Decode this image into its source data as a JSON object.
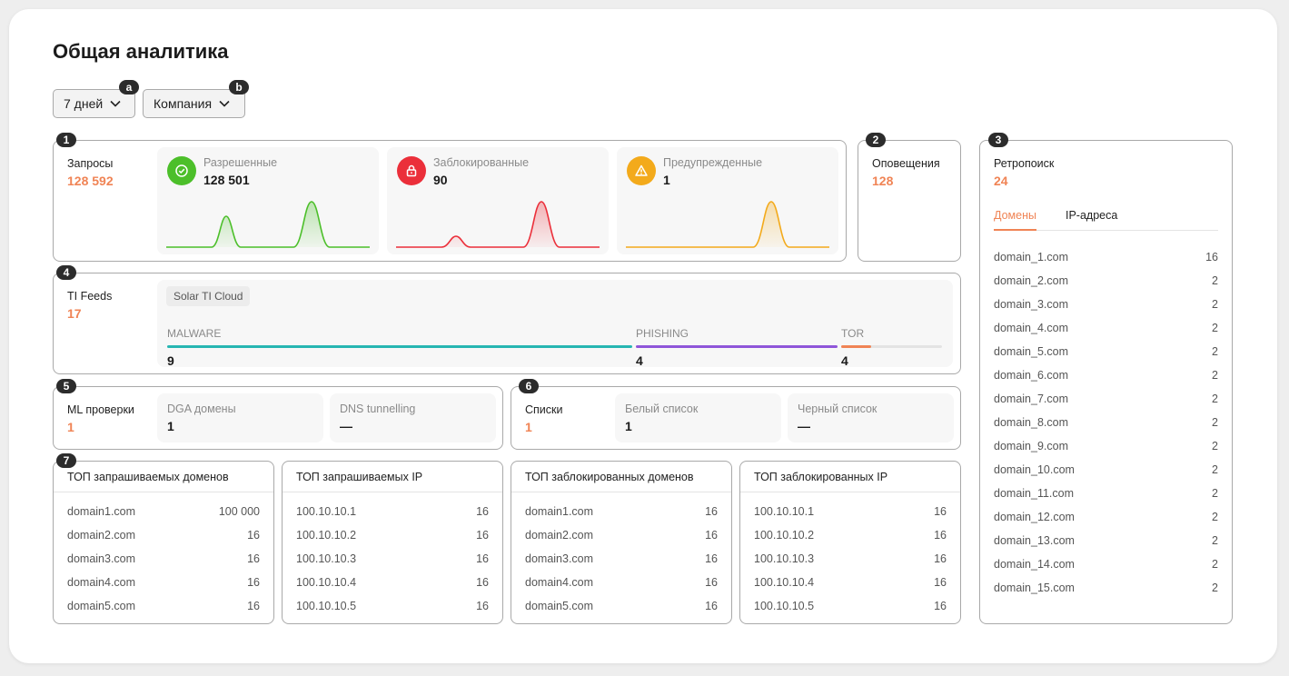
{
  "header": {
    "title": "Общая аналитика"
  },
  "filters": {
    "period_label": "7 дней",
    "company_label": "Компания",
    "marker_a": "a",
    "marker_b": "b"
  },
  "markers": {
    "m1": "1",
    "m2": "2",
    "m3": "3",
    "m4": "4",
    "m5": "5",
    "m6": "6",
    "m7": "7"
  },
  "requests": {
    "label": "Запросы",
    "value": "128 592",
    "cards": [
      {
        "label": "Разрешенные",
        "value": "128 501",
        "color": "#4cbf2a",
        "icon": "check-icon"
      },
      {
        "label": "Заблокированные",
        "value": "90",
        "color": "#eb2f3a",
        "icon": "lock-icon"
      },
      {
        "label": "Предупрежденные",
        "value": "1",
        "color": "#f3aa1b",
        "icon": "warning-icon"
      }
    ]
  },
  "alerts": {
    "label": "Оповещения",
    "value": "128"
  },
  "retro": {
    "label": "Ретропоиск",
    "value": "24",
    "tabs": [
      "Домены",
      "IP-адреса"
    ],
    "rows": [
      {
        "name": "domain_1.com",
        "count": "16"
      },
      {
        "name": "domain_2.com",
        "count": "2"
      },
      {
        "name": "domain_3.com",
        "count": "2"
      },
      {
        "name": "domain_4.com",
        "count": "2"
      },
      {
        "name": "domain_5.com",
        "count": "2"
      },
      {
        "name": "domain_6.com",
        "count": "2"
      },
      {
        "name": "domain_7.com",
        "count": "2"
      },
      {
        "name": "domain_8.com",
        "count": "2"
      },
      {
        "name": "domain_9.com",
        "count": "2"
      },
      {
        "name": "domain_10.com",
        "count": "2"
      },
      {
        "name": "domain_11.com",
        "count": "2"
      },
      {
        "name": "domain_12.com",
        "count": "2"
      },
      {
        "name": "domain_13.com",
        "count": "2"
      },
      {
        "name": "domain_14.com",
        "count": "2"
      },
      {
        "name": "domain_15.com",
        "count": "2"
      }
    ]
  },
  "feeds": {
    "label": "TI Feeds",
    "value": "17",
    "source_tag": "Solar TI Cloud",
    "categories": [
      {
        "name": "MALWARE",
        "value": "9",
        "color": "#27b6b2"
      },
      {
        "name": "PHISHING",
        "value": "4",
        "color": "#8f56d9"
      },
      {
        "name": "TOR",
        "value": "4",
        "color": "#f08455",
        "fill_fraction": 0.3
      }
    ]
  },
  "ml": {
    "label": "ML проверки",
    "value": "1",
    "cards": [
      {
        "label": "DGA домены",
        "value": "1"
      },
      {
        "label": "DNS tunnelling",
        "value": "—"
      }
    ]
  },
  "lists": {
    "label": "Списки",
    "value": "1",
    "cards": [
      {
        "label": "Белый список",
        "value": "1"
      },
      {
        "label": "Черный список",
        "value": "—"
      }
    ]
  },
  "tops": [
    {
      "title": "ТОП запрашиваемых доменов",
      "rows": [
        [
          "domain1.com",
          "100 000"
        ],
        [
          "domain2.com",
          "16"
        ],
        [
          "domain3.com",
          "16"
        ],
        [
          "domain4.com",
          "16"
        ],
        [
          "domain5.com",
          "16"
        ]
      ]
    },
    {
      "title": "ТОП запрашиваемых  IP",
      "rows": [
        [
          "100.10.10.1",
          "16"
        ],
        [
          "100.10.10.2",
          "16"
        ],
        [
          "100.10.10.3",
          "16"
        ],
        [
          "100.10.10.4",
          "16"
        ],
        [
          "100.10.10.5",
          "16"
        ]
      ]
    },
    {
      "title": "ТОП заблокированных доменов",
      "rows": [
        [
          "domain1.com",
          "16"
        ],
        [
          "domain2.com",
          "16"
        ],
        [
          "domain3.com",
          "16"
        ],
        [
          "domain4.com",
          "16"
        ],
        [
          "domain5.com",
          "16"
        ]
      ]
    },
    {
      "title": "ТОП заблокированных IP",
      "rows": [
        [
          "100.10.10.1",
          "16"
        ],
        [
          "100.10.10.2",
          "16"
        ],
        [
          "100.10.10.3",
          "16"
        ],
        [
          "100.10.10.4",
          "16"
        ],
        [
          "100.10.10.5",
          "16"
        ]
      ]
    }
  ]
}
